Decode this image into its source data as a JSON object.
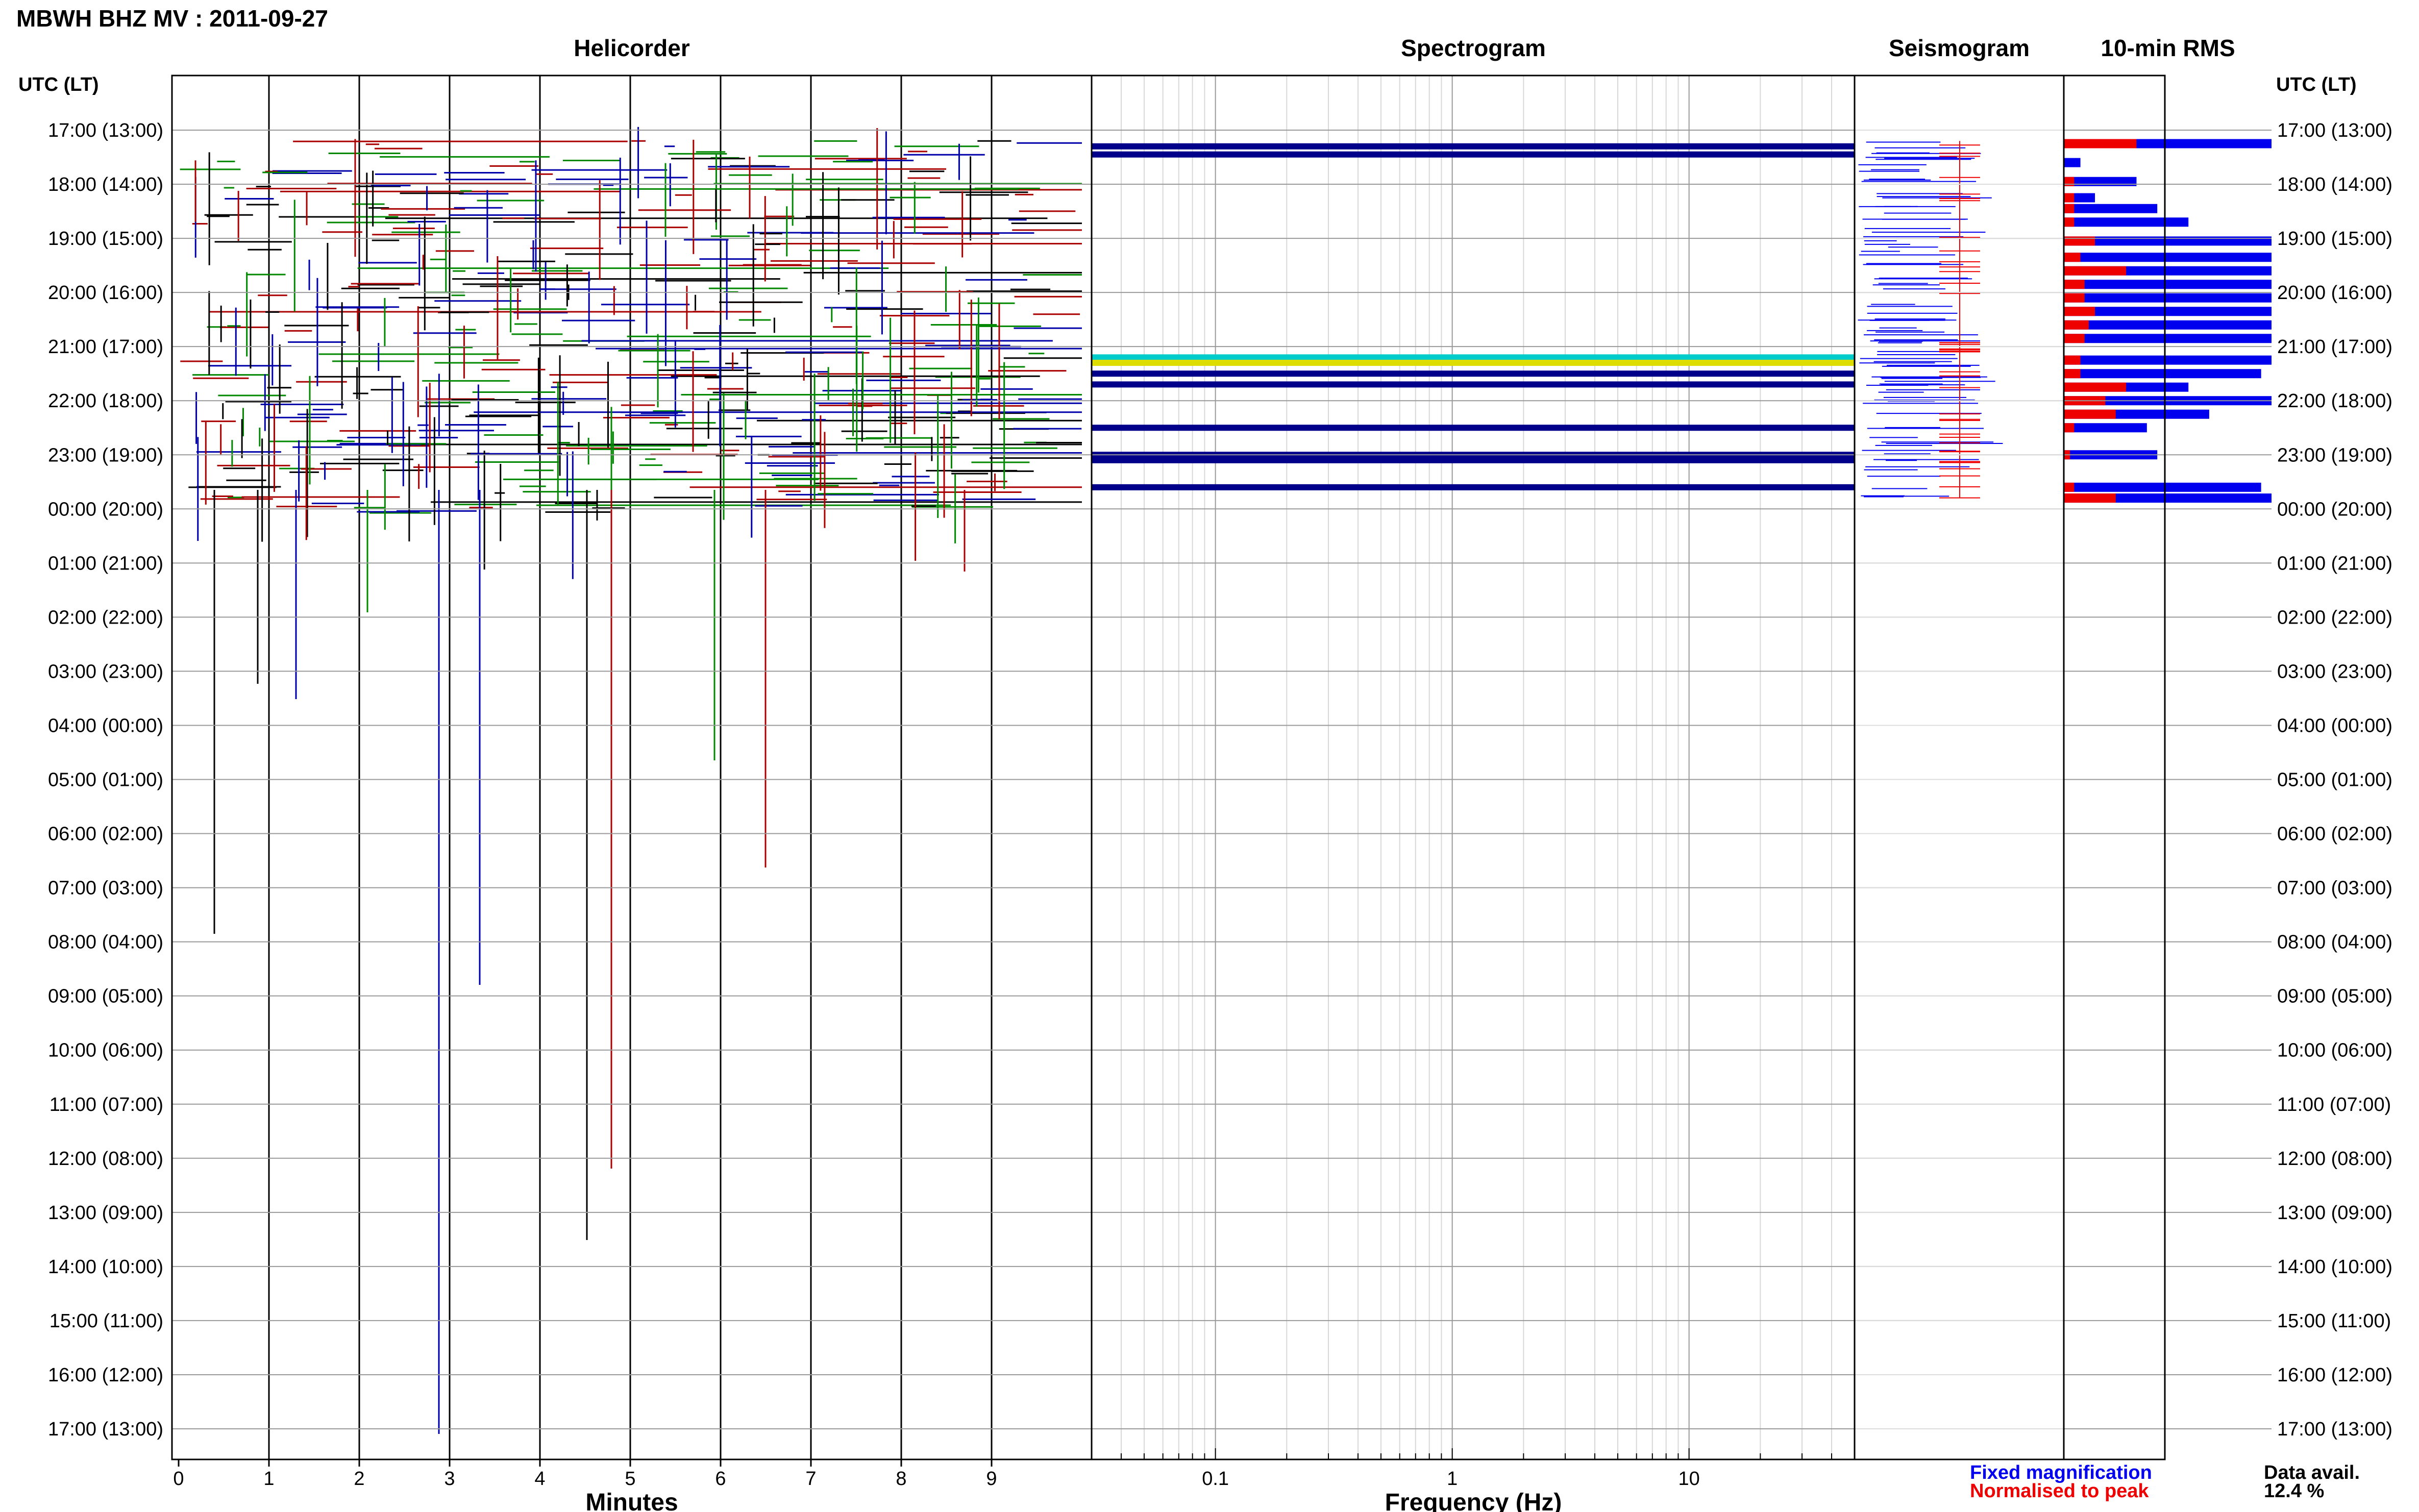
{
  "header": {
    "title": "MBWH BHZ MV : 2011-09-27"
  },
  "panels": {
    "helicorder": "Helicorder",
    "spectrogram": "Spectrogram",
    "seismogram": "Seismogram",
    "rms": "10-min RMS"
  },
  "axis": {
    "utc_label": "UTC (LT)",
    "time_ticks": [
      "17:00 (13:00)",
      "18:00 (14:00)",
      "19:00 (15:00)",
      "20:00 (16:00)",
      "21:00 (17:00)",
      "22:00 (18:00)",
      "23:00 (19:00)",
      "00:00 (20:00)",
      "01:00 (21:00)",
      "02:00 (22:00)",
      "03:00 (23:00)",
      "04:00 (00:00)",
      "05:00 (01:00)",
      "06:00 (02:00)",
      "07:00 (03:00)",
      "08:00 (04:00)",
      "09:00 (05:00)",
      "10:00 (06:00)",
      "11:00 (07:00)",
      "12:00 (08:00)",
      "13:00 (09:00)",
      "14:00 (10:00)",
      "15:00 (11:00)",
      "16:00 (12:00)",
      "17:00 (13:00)"
    ],
    "minutes_label": "Minutes",
    "minute_ticks": [
      "0",
      "1",
      "2",
      "3",
      "4",
      "5",
      "6",
      "7",
      "8",
      "9"
    ],
    "frequency_label": "Frequency (Hz)",
    "frequency_ticks": [
      "0.1",
      "1",
      "10"
    ]
  },
  "legend": {
    "fixed": "Fixed magnification",
    "normalised": "Normalised to peak",
    "fixed_color": "#0000ee",
    "normalised_color": "#ee0000"
  },
  "data_availability": {
    "label": "Data avail.",
    "value": "12.4 %"
  },
  "colors": {
    "helicorder_traces": [
      "#000000",
      "#0000aa",
      "#008800",
      "#aa0000"
    ],
    "spectrogram_band": "#00008b",
    "rms_fixed": "#0000ee",
    "rms_normalised": "#ee0000"
  },
  "chart_data": {
    "type": "helicorder",
    "time_range_hours": [
      0,
      24
    ],
    "minute_range": [
      0,
      10
    ],
    "frequency_range_hz": [
      0.03,
      50
    ],
    "frequency_scale": "log",
    "spectrogram_rows": [
      {
        "hour": 0.3,
        "color": "#00008b"
      },
      {
        "hour": 0.45,
        "color": "#00008b"
      },
      {
        "hour": 4.2,
        "color": "#00cccc"
      },
      {
        "hour": 4.3,
        "color": "#dddd00"
      },
      {
        "hour": 4.5,
        "color": "#00008b"
      },
      {
        "hour": 4.7,
        "color": "#00008b"
      },
      {
        "hour": 5.5,
        "color": "#00008b"
      },
      {
        "hour": 6.0,
        "color": "#00008b"
      },
      {
        "hour": 6.1,
        "color": "#00008b"
      },
      {
        "hour": 6.6,
        "color": "#00008b"
      }
    ],
    "rms_bars_hours": [
      {
        "hour": 0.25,
        "fixed": 1.0,
        "normalised": 0.35
      },
      {
        "hour": 0.6,
        "fixed": 0.08,
        "normalised": 0.0
      },
      {
        "hour": 0.95,
        "fixed": 0.35,
        "normalised": 0.05
      },
      {
        "hour": 1.25,
        "fixed": 0.15,
        "normalised": 0.05
      },
      {
        "hour": 1.45,
        "fixed": 0.45,
        "normalised": 0.05
      },
      {
        "hour": 1.7,
        "fixed": 0.6,
        "normalised": 0.05
      },
      {
        "hour": 2.05,
        "fixed": 1.0,
        "normalised": 0.15
      },
      {
        "hour": 2.35,
        "fixed": 1.0,
        "normalised": 0.08
      },
      {
        "hour": 2.6,
        "fixed": 1.0,
        "normalised": 0.3
      },
      {
        "hour": 2.85,
        "fixed": 1.0,
        "normalised": 0.1
      },
      {
        "hour": 3.1,
        "fixed": 1.0,
        "normalised": 0.1
      },
      {
        "hour": 3.35,
        "fixed": 1.0,
        "normalised": 0.15
      },
      {
        "hour": 3.6,
        "fixed": 1.0,
        "normalised": 0.12
      },
      {
        "hour": 3.85,
        "fixed": 1.0,
        "normalised": 0.1
      },
      {
        "hour": 4.25,
        "fixed": 1.0,
        "normalised": 0.08
      },
      {
        "hour": 4.5,
        "fixed": 0.95,
        "normalised": 0.08
      },
      {
        "hour": 4.75,
        "fixed": 0.6,
        "normalised": 0.3
      },
      {
        "hour": 5.0,
        "fixed": 1.0,
        "normalised": 0.2
      },
      {
        "hour": 5.25,
        "fixed": 0.7,
        "normalised": 0.25
      },
      {
        "hour": 5.5,
        "fixed": 0.4,
        "normalised": 0.05
      },
      {
        "hour": 6.0,
        "fixed": 0.45,
        "normalised": 0.03
      },
      {
        "hour": 6.6,
        "fixed": 0.95,
        "normalised": 0.05
      },
      {
        "hour": 6.8,
        "fixed": 1.0,
        "normalised": 0.25
      }
    ]
  }
}
